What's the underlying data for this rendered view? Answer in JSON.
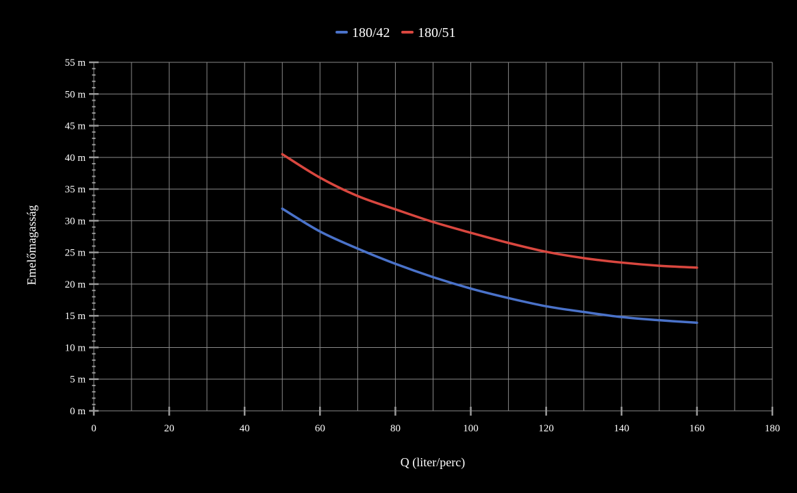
{
  "chart_data": {
    "type": "line",
    "title": "",
    "xlabel": "Q (liter/perc)",
    "ylabel": "Emelőmagasság",
    "xlim": [
      0,
      180
    ],
    "ylim": [
      0,
      55
    ],
    "x_ticks": [
      0,
      20,
      40,
      60,
      80,
      100,
      120,
      140,
      160,
      180
    ],
    "y_ticks": [
      0,
      5,
      10,
      15,
      20,
      25,
      30,
      35,
      40,
      45,
      50,
      55
    ],
    "y_tick_labels": [
      "0 m",
      "5 m",
      "10 m",
      "15 m",
      "20 m",
      "25 m",
      "30 m",
      "35 m",
      "40 m",
      "45 m",
      "50 m",
      "55 m"
    ],
    "x_tick_labels": [
      "0",
      "20",
      "40",
      "60",
      "80",
      "100",
      "120",
      "140",
      "160",
      "180"
    ],
    "grid": true,
    "legend_position": "top-center",
    "x": [
      50,
      60,
      70,
      80,
      90,
      100,
      110,
      120,
      130,
      140,
      150,
      160
    ],
    "series": [
      {
        "name": "180/42",
        "color": "#4a72c9",
        "values": [
          31.9,
          28.3,
          25.6,
          23.2,
          21.1,
          19.3,
          17.8,
          16.5,
          15.6,
          14.8,
          14.3,
          13.9
        ]
      },
      {
        "name": "180/51",
        "color": "#d9473f",
        "values": [
          40.5,
          36.8,
          33.9,
          31.8,
          29.8,
          28.1,
          26.5,
          25.1,
          24.1,
          23.4,
          22.9,
          22.6
        ]
      }
    ],
    "colors": {
      "background": "#000000",
      "grid": "#8a8a8a",
      "text": "#ffffff",
      "tick_mark": "#9a9a9a"
    }
  }
}
